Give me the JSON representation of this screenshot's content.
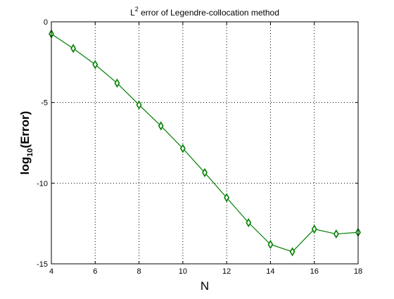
{
  "chart_data": {
    "type": "line",
    "title": {
      "prefix": "L",
      "superscript": "2",
      "suffix": " error of Legendre-collocation method"
    },
    "xlabel": "N",
    "ylabel": {
      "prefix": "log",
      "subscript": "10",
      "suffix": "(Error)"
    },
    "xlim": [
      4,
      18
    ],
    "ylim": [
      -15,
      0
    ],
    "xticks": [
      4,
      6,
      8,
      10,
      12,
      14,
      16,
      18
    ],
    "xtick_labels": [
      "4",
      "6",
      "8",
      "10",
      "12",
      "14",
      "16",
      "18"
    ],
    "yticks": [
      0,
      -5,
      -10,
      -15
    ],
    "ytick_labels": [
      "0",
      "-5",
      "-10",
      "-15"
    ],
    "grid": true,
    "series": [
      {
        "color": "#007f00",
        "marker": "diamond",
        "x": [
          4,
          5,
          6,
          7,
          8,
          9,
          10,
          11,
          12,
          13,
          14,
          15,
          16,
          17,
          18
        ],
        "y": [
          -0.75,
          -1.65,
          -2.65,
          -3.8,
          -5.15,
          -6.45,
          -7.85,
          -9.35,
          -10.9,
          -12.45,
          -13.8,
          -14.25,
          -12.85,
          -13.15,
          -13.05
        ]
      }
    ]
  }
}
